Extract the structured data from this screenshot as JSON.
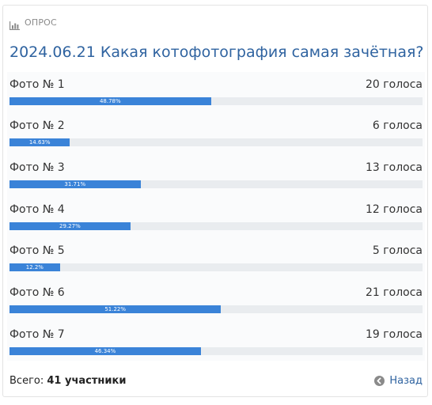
{
  "poll": {
    "header_label": "ОПРОС",
    "header_icon": "bar-chart-icon",
    "title": "2024.06.21 Какая котофотография самая зачётная?",
    "accent_color": "#3a83d8",
    "title_color": "#2f63a0",
    "options": [
      {
        "name": "Фото № 1",
        "votes": "20 голоса",
        "percent_label": "48.78%",
        "percent": 48.78
      },
      {
        "name": "Фото № 2",
        "votes": "6 голоса",
        "percent_label": "14.63%",
        "percent": 14.63
      },
      {
        "name": "Фото № 3",
        "votes": "13 голоса",
        "percent_label": "31.71%",
        "percent": 31.71
      },
      {
        "name": "Фото № 4",
        "votes": "12 голоса",
        "percent_label": "29.27%",
        "percent": 29.27
      },
      {
        "name": "Фото № 5",
        "votes": "5 голоса",
        "percent_label": "12.2%",
        "percent": 12.2
      },
      {
        "name": "Фото № 6",
        "votes": "21 голоса",
        "percent_label": "51.22%",
        "percent": 51.22
      },
      {
        "name": "Фото № 7",
        "votes": "19 голоса",
        "percent_label": "46.34%",
        "percent": 46.34
      }
    ],
    "footer": {
      "total_label": "Всего:",
      "total_value": "41 участники",
      "back_label": "Назад",
      "back_icon": "arrow-left-circle-icon"
    }
  }
}
